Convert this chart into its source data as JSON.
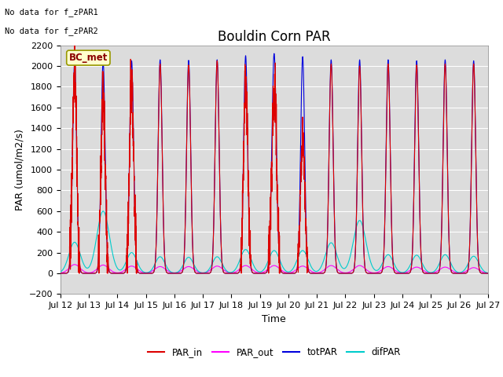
{
  "title": "Bouldin Corn PAR",
  "ylabel": "PAR (umol/m2/s)",
  "xlabel": "Time",
  "ylim": [
    -200,
    2200
  ],
  "start_day": 12,
  "end_day": 27,
  "n_days": 15,
  "background_color": "#dcdcdc",
  "colors": {
    "PAR_in": "#dd0000",
    "PAR_out": "#ff00ff",
    "totPAR": "#0000dd",
    "difPAR": "#00cccc"
  },
  "legend_labels": [
    "PAR_in",
    "PAR_out",
    "totPAR",
    "difPAR"
  ],
  "no_data_text": [
    "No data for f_zPAR1",
    "No data for f_zPAR2"
  ],
  "bc_met_label": "BC_met",
  "title_fontsize": 12,
  "label_fontsize": 9,
  "tick_fontsize": 8
}
